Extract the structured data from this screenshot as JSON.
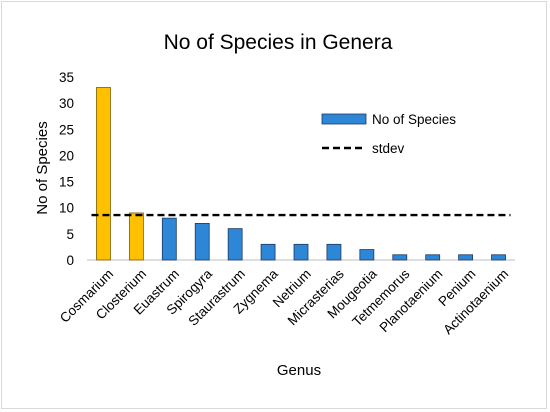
{
  "chart_data": {
    "type": "bar",
    "title": "No of Species in Genera",
    "xlabel": "Genus",
    "ylabel": "No of Species",
    "ylim": [
      0,
      35
    ],
    "yticks": [
      0,
      5,
      10,
      15,
      20,
      25,
      30,
      35
    ],
    "categories": [
      "Cosmarium",
      "Closterium",
      "Euastrum",
      "Spirogyra",
      "Staurastrum",
      "Zygnema",
      "Netrium",
      "Micrasterias",
      "Mougeotia",
      "Tetmemorus",
      "Planotaenium",
      "Penium",
      "Actinotaenium"
    ],
    "series": [
      {
        "name": "No of Species",
        "values": [
          33,
          9,
          8,
          7,
          6,
          3,
          3,
          3,
          2,
          1,
          1,
          1,
          1
        ],
        "color": "#2e86d6",
        "highlight_color": "#ffc000",
        "highlight_indices": [
          0,
          1
        ]
      },
      {
        "name": "stdev",
        "type": "line",
        "style": "dashed",
        "value": 8.6,
        "color": "#000000"
      }
    ],
    "grid": false,
    "legend_position": "right"
  }
}
